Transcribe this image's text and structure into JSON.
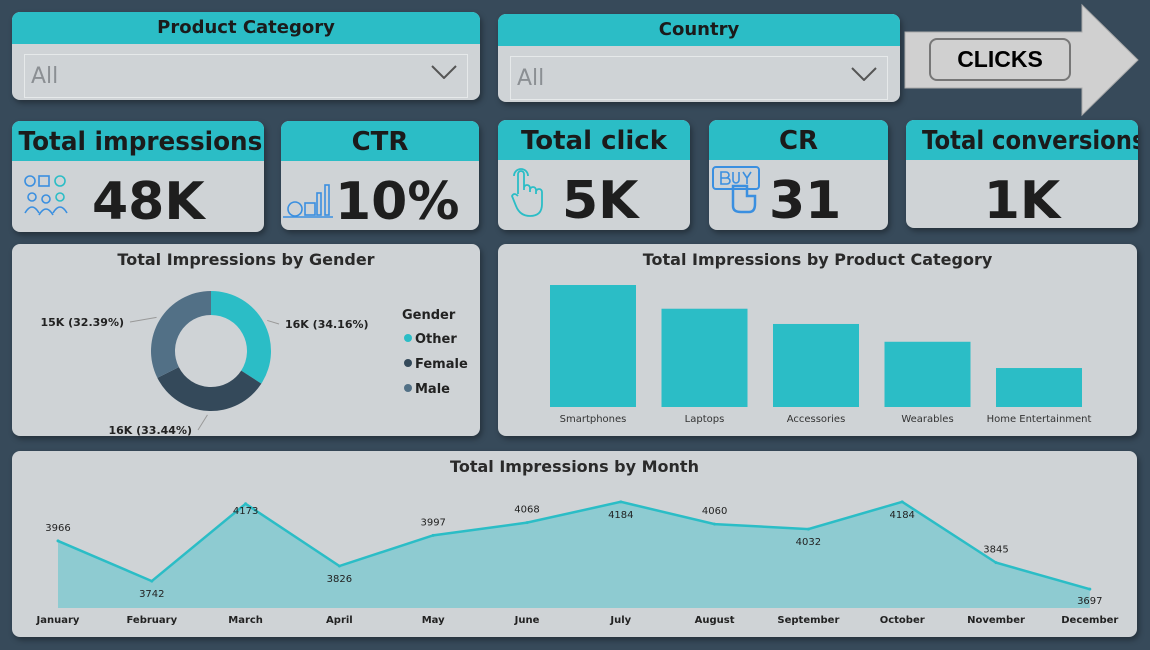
{
  "filters": [
    {
      "label": "Product Category",
      "value": "All"
    },
    {
      "label": "Country",
      "value": "All"
    }
  ],
  "clicks_button": "CLICKS",
  "kpis": [
    {
      "label": "Total impressions",
      "value": "48K",
      "icon": "social-users-icon"
    },
    {
      "label": "CTR",
      "value": "10%",
      "icon": "analytics-icon"
    },
    {
      "label": "Total click",
      "value": "5K",
      "icon": "hand-pointer-icon"
    },
    {
      "label": "CR",
      "value": "31",
      "icon": "buy-button-icon"
    },
    {
      "label": "Total conversions",
      "value": "1K",
      "icon": ""
    }
  ],
  "colors": {
    "accent": "#2bbdc6",
    "female": "#34495a",
    "male": "#527086",
    "background": "#374a5a",
    "card": "#cfd3d6"
  },
  "chart_data": [
    {
      "type": "pie",
      "title": "Total Impressions by Gender",
      "legend_title": "Gender",
      "legend_position": "right",
      "slices": [
        {
          "name": "Other",
          "label": "16K (34.16%)",
          "percent": 34.16
        },
        {
          "name": "Female",
          "label": "16K (33.44%)",
          "percent": 33.44
        },
        {
          "name": "Male",
          "label": "15K (32.39%)",
          "percent": 32.39
        }
      ]
    },
    {
      "type": "bar",
      "title": "Total Impressions by Product Category",
      "categories": [
        "Smartphones",
        "Laptops",
        "Accessories",
        "Wearables",
        "Home Entertainment"
      ],
      "values": [
        14400,
        11600,
        9800,
        7700,
        4600
      ]
    },
    {
      "type": "area",
      "title": "Total Impressions by Month",
      "categories": [
        "January",
        "February",
        "March",
        "April",
        "May",
        "June",
        "July",
        "August",
        "September",
        "October",
        "November",
        "December"
      ],
      "values": [
        3966,
        3742,
        4173,
        3826,
        3997,
        4068,
        4184,
        4060,
        4032,
        4184,
        3845,
        3697
      ],
      "ylim": [
        3592,
        4250
      ]
    }
  ]
}
